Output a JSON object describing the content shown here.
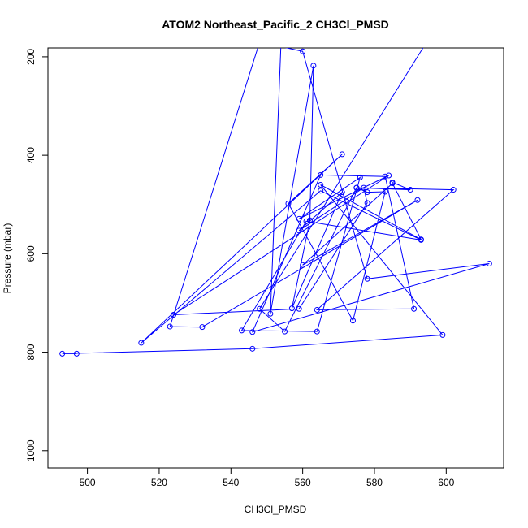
{
  "chart_data": {
    "type": "line",
    "title": "ATOM2 Northeast_Pacific_2 CH3Cl_PMSD",
    "xlabel": "CH3Cl_PMSD",
    "ylabel": "Pressure (mbar)",
    "xlim": [
      489,
      616
    ],
    "ylim": [
      1035,
      182
    ],
    "y_reversed": true,
    "x_ticks": [
      500,
      520,
      540,
      560,
      580,
      600
    ],
    "y_ticks": [
      200,
      400,
      600,
      800,
      1000
    ],
    "grid": false,
    "legend": "none",
    "series": [
      {
        "color": "#0000ff",
        "marker": "open-circle",
        "x": [
          497,
          493,
          546,
          599,
          565,
          593,
          585,
          560,
          592,
          532,
          523,
          548,
          560,
          578,
          612,
          546,
          565,
          583,
          591,
          564,
          602,
          575,
          578,
          583,
          574,
          556,
          571,
          515,
          565,
          593,
          561,
          543,
          564,
          576,
          559,
          584,
          524,
          559,
          578,
          577,
          559,
          571,
          557,
          562,
          563,
          551,
          554,
          595,
          548,
          555,
          575,
          590,
          585
        ],
        "y": [
          803,
          803,
          793,
          765,
          460,
          571,
          457,
          623,
          491,
          749,
          748,
          170,
          189,
          651,
          620,
          759,
          440,
          443,
          712,
          714,
          470,
          466,
          475,
          474,
          736,
          498,
          398,
          781,
          472,
          572,
          534,
          756,
          758,
          445,
          529,
          441,
          724,
          712,
          497,
          466,
          553,
          475,
          711,
          532,
          218,
          722,
          165,
          165,
          712,
          758,
          466,
          470,
          455
        ]
      }
    ]
  }
}
